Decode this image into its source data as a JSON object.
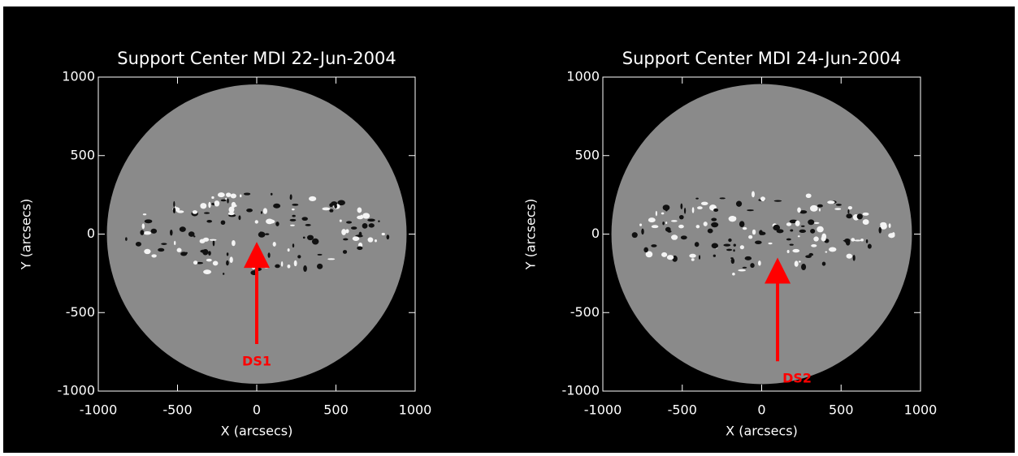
{
  "chart_data": [
    {
      "type": "image",
      "title": "Support Center MDI 22-Jun-2004",
      "x_label": "X (arcsecs)",
      "y_label": "Y (arcsecs)",
      "xlim": [
        -1000,
        1000
      ],
      "ylim": [
        -1000,
        1000
      ],
      "xticks": [
        -1000,
        -500,
        0,
        500,
        1000
      ],
      "yticks": [
        -1000,
        -500,
        0,
        500,
        1000
      ],
      "arrow": {
        "label": "DS1",
        "color": "#ff0000",
        "x": 0,
        "y": -50,
        "tail_y": -700
      }
    },
    {
      "type": "image",
      "title": "Support Center MDI 24-Jun-2004",
      "x_label": "X (arcsecs)",
      "y_label": "Y (arcsecs)",
      "xlim": [
        -1000,
        1000
      ],
      "ylim": [
        -1000,
        1000
      ],
      "xticks": [
        -1000,
        -500,
        0,
        500,
        1000
      ],
      "yticks": [
        -1000,
        -500,
        0,
        500,
        1000
      ],
      "arrow": {
        "label": "DS2",
        "color": "#ff0000",
        "x": 100,
        "y": -150,
        "tail_y": -810
      }
    }
  ]
}
